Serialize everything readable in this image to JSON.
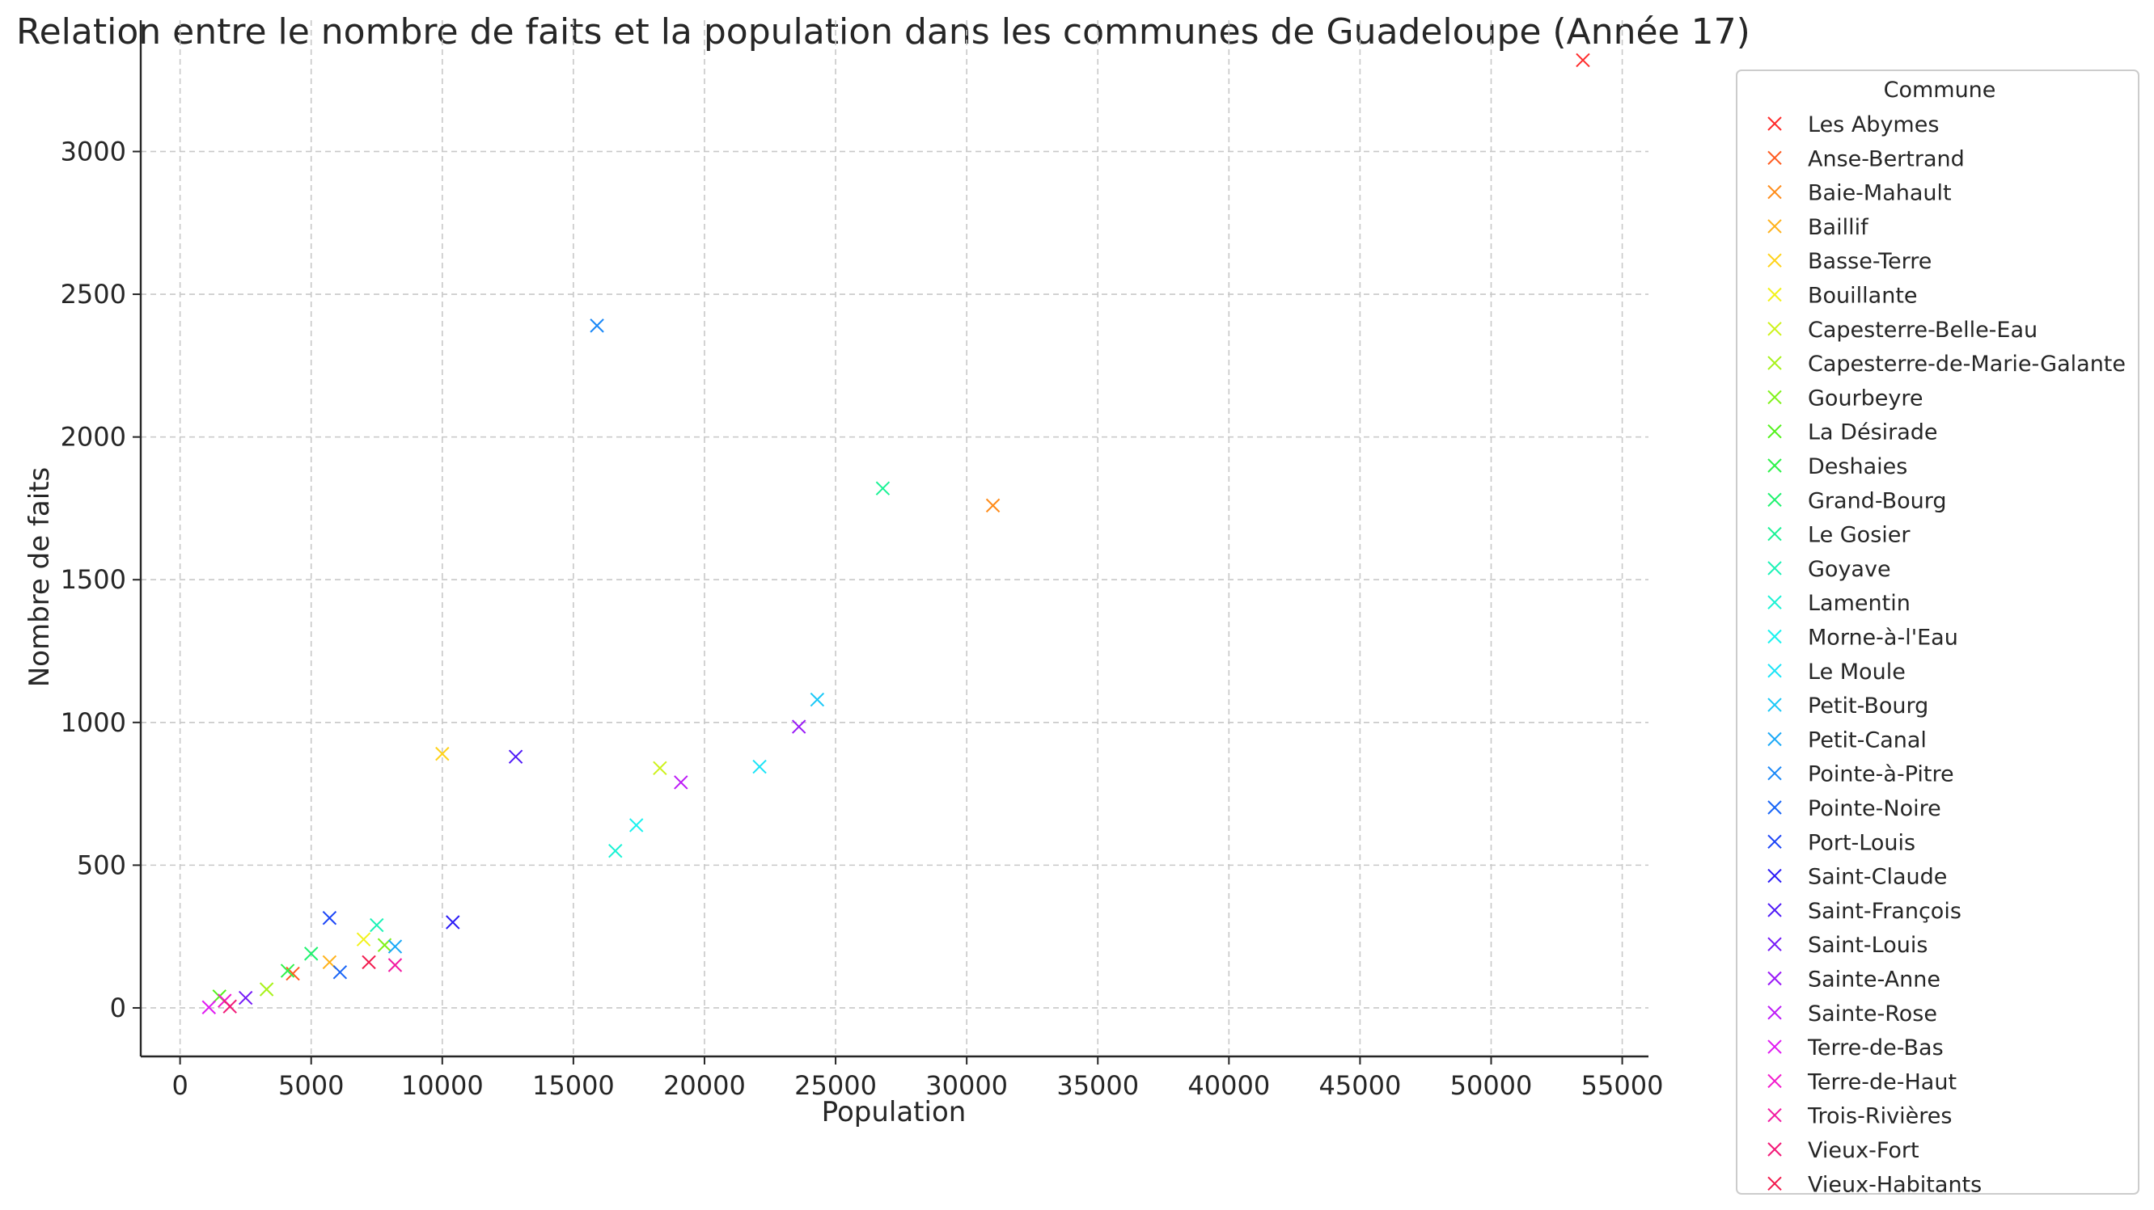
{
  "chart_data": {
    "type": "scatter",
    "title": "Relation entre le nombre de faits et la population dans les communes de Guadeloupe (Année 17)",
    "xlabel": "Population",
    "ylabel": "Nombre de faits",
    "xlim": [
      -1500,
      56000
    ],
    "ylim": [
      -170,
      3460
    ],
    "xticks": [
      0,
      5000,
      10000,
      15000,
      20000,
      25000,
      30000,
      35000,
      40000,
      45000,
      50000,
      55000
    ],
    "yticks": [
      0,
      500,
      1000,
      1500,
      2000,
      2500,
      3000
    ],
    "grid": true,
    "marker": "x",
    "legend": {
      "title": "Commune",
      "position": "outside-right"
    },
    "series": [
      {
        "name": "Les Abymes",
        "color": "#ff2b2b",
        "x": 53500,
        "y": 3320
      },
      {
        "name": "Anse-Bertrand",
        "color": "#ff5a1e",
        "x": 4300,
        "y": 120
      },
      {
        "name": "Baie-Mahault",
        "color": "#ff8c1a",
        "x": 31000,
        "y": 1760
      },
      {
        "name": "Baillif",
        "color": "#ffb21a",
        "x": 5700,
        "y": 160
      },
      {
        "name": "Basse-Terre",
        "color": "#ffd21a",
        "x": 10000,
        "y": 890
      },
      {
        "name": "Bouillante",
        "color": "#f2f21a",
        "x": 7000,
        "y": 240
      },
      {
        "name": "Capesterre-Belle-Eau",
        "color": "#cdf21a",
        "x": 18300,
        "y": 840
      },
      {
        "name": "Capesterre-de-Marie-Galante",
        "color": "#a8f21a",
        "x": 3300,
        "y": 65
      },
      {
        "name": "Gourbeyre",
        "color": "#7ff21a",
        "x": 7800,
        "y": 220
      },
      {
        "name": "La Désirade",
        "color": "#52f21a",
        "x": 1500,
        "y": 40
      },
      {
        "name": "Deshaies",
        "color": "#2ef24a",
        "x": 4100,
        "y": 130
      },
      {
        "name": "Grand-Bourg",
        "color": "#1ef26e",
        "x": 5000,
        "y": 190
      },
      {
        "name": "Le Gosier",
        "color": "#1af295",
        "x": 26800,
        "y": 1820
      },
      {
        "name": "Goyave",
        "color": "#1af2b6",
        "x": 7500,
        "y": 290
      },
      {
        "name": "Lamentin",
        "color": "#1af2d4",
        "x": 16600,
        "y": 550
      },
      {
        "name": "Morne-à-l'Eau",
        "color": "#1af2ef",
        "x": 17400,
        "y": 640
      },
      {
        "name": "Le Moule",
        "color": "#1ae4f7",
        "x": 22100,
        "y": 845
      },
      {
        "name": "Petit-Bourg",
        "color": "#1ac8f7",
        "x": 24300,
        "y": 1080
      },
      {
        "name": "Petit-Canal",
        "color": "#1aa8f7",
        "x": 8200,
        "y": 215
      },
      {
        "name": "Pointe-à-Pitre",
        "color": "#1a88f7",
        "x": 15900,
        "y": 2390
      },
      {
        "name": "Pointe-Noire",
        "color": "#1a66f7",
        "x": 6100,
        "y": 125
      },
      {
        "name": "Port-Louis",
        "color": "#1a44f7",
        "x": 5700,
        "y": 315
      },
      {
        "name": "Saint-Claude",
        "color": "#2a1af7",
        "x": 10400,
        "y": 300
      },
      {
        "name": "Saint-François",
        "color": "#501af7",
        "x": 12800,
        "y": 880
      },
      {
        "name": "Saint-Louis",
        "color": "#751af7",
        "x": 2500,
        "y": 35
      },
      {
        "name": "Sainte-Anne",
        "color": "#9a1af7",
        "x": 23600,
        "y": 985
      },
      {
        "name": "Sainte-Rose",
        "color": "#bd1af7",
        "x": 19100,
        "y": 790
      },
      {
        "name": "Terre-de-Bas",
        "color": "#e01af2",
        "x": 1100,
        "y": 2
      },
      {
        "name": "Terre-de-Haut",
        "color": "#f21acd",
        "x": 1700,
        "y": 25
      },
      {
        "name": "Trois-Rivières",
        "color": "#f21aa3",
        "x": 8200,
        "y": 150
      },
      {
        "name": "Vieux-Fort",
        "color": "#f21a78",
        "x": 1900,
        "y": 5
      },
      {
        "name": "Vieux-Habitants",
        "color": "#f21a4d",
        "x": 7200,
        "y": 160
      }
    ]
  }
}
